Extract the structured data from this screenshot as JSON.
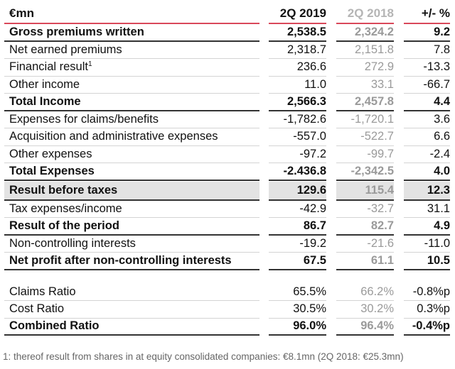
{
  "header": {
    "label": "€mn",
    "col1": "2Q 2019",
    "col2": "2Q 2018",
    "col3": "+/- %"
  },
  "rows": [
    {
      "label": "Gross premiums written",
      "v1": "2,538.5",
      "v2": "2,324.2",
      "v3": "9.2",
      "bold": true
    },
    {
      "label": "Net earned premiums",
      "v1": "2,318.7",
      "v2": "2,151.8",
      "v3": "7.8"
    },
    {
      "label": "Financial result",
      "sup": "1",
      "v1": "236.6",
      "v2": "272.9",
      "v3": "-13.3"
    },
    {
      "label": "Other income",
      "v1": "11.0",
      "v2": "33.1",
      "v3": "-66.7"
    },
    {
      "label": "Total Income",
      "v1": "2,566.3",
      "v2": "2,457.8",
      "v3": "4.4",
      "bold": true
    },
    {
      "label": "Expenses for claims/benefits",
      "v1": "-1,782.6",
      "v2": "-1,720.1",
      "v3": "3.6"
    },
    {
      "label": "Acquisition and administrative expenses",
      "v1": "-557.0",
      "v2": "-522.7",
      "v3": "6.6"
    },
    {
      "label": "Other expenses",
      "v1": "-97.2",
      "v2": "-99.7",
      "v3": "-2.4"
    },
    {
      "label": "Total Expenses",
      "v1": "-2.436.8",
      "v2": "-2,342.5",
      "v3": "4.0",
      "bold": true
    },
    {
      "label": "Result before taxes",
      "v1": "129.6",
      "v2": "115.4",
      "v3": "12.3",
      "bold": true,
      "shaded": true
    },
    {
      "label": "Tax expenses/income",
      "v1": "-42.9",
      "v2": "-32.7",
      "v3": "31.1"
    },
    {
      "label": "Result of the period",
      "v1": "86.7",
      "v2": "82.7",
      "v3": "4.9",
      "bold": true
    },
    {
      "label": "Non-controlling interests",
      "v1": "-19.2",
      "v2": "-21.6",
      "v3": "-11.0"
    },
    {
      "label": "Net profit after non-controlling interests",
      "v1": "67.5",
      "v2": "61.1",
      "v3": "10.5",
      "bold": true
    },
    {
      "label": "Claims Ratio",
      "v1": "65.5%",
      "v2": "66.2%",
      "v3": "-0.8%p",
      "gap": true
    },
    {
      "label": "Cost Ratio",
      "v1": "30.5%",
      "v2": "30.2%",
      "v3": "0.3%p"
    },
    {
      "label": "Combined Ratio",
      "v1": "96.0%",
      "v2": "96.4%",
      "v3": "-0.4%p",
      "bold": true
    }
  ],
  "footnote": "1: thereof result from shares in at equity consolidated companies: €8.1mn (2Q 2018: €25.3mn)"
}
